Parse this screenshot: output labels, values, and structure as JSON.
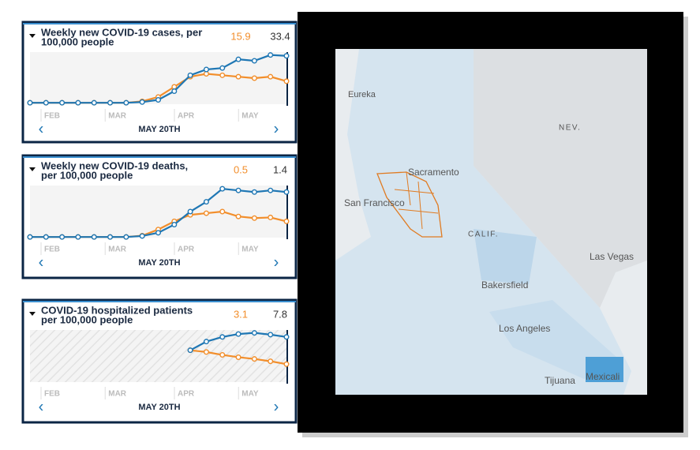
{
  "panels": [
    {
      "title": [
        "Weekly new COVID-19 cases, per",
        "100,000 people"
      ],
      "ylim": [
        0,
        36
      ],
      "months": [
        "FEB",
        "MAR",
        "APR",
        "MAY"
      ],
      "date": "MAY 20TH",
      "hatched": false,
      "series": [
        {
          "color": "#f28e2b",
          "current": 15.9,
          "values": [
            1,
            1,
            1,
            1,
            1,
            1,
            1,
            2,
            5,
            12,
            19,
            21,
            20,
            19,
            18,
            19,
            15.9
          ]
        },
        {
          "color": "#1f77b4",
          "current": 33.4,
          "values": [
            1,
            1,
            1,
            1,
            1,
            1,
            1,
            1.5,
            3,
            9,
            20,
            24,
            25,
            31,
            30,
            34,
            33.4
          ]
        }
      ]
    },
    {
      "title": [
        "Weekly new COVID-19 deaths,",
        "per 100,000 people"
      ],
      "ylim": [
        0,
        1.6
      ],
      "months": [
        "FEB",
        "MAR",
        "APR",
        "MAY"
      ],
      "date": "MAY 20TH",
      "hatched": false,
      "series": [
        {
          "color": "#f28e2b",
          "current": 0.5,
          "values": [
            0.02,
            0.02,
            0.02,
            0.02,
            0.02,
            0.02,
            0.02,
            0.06,
            0.25,
            0.5,
            0.7,
            0.75,
            0.8,
            0.65,
            0.6,
            0.62,
            0.5
          ]
        },
        {
          "color": "#1f77b4",
          "current": 1.4,
          "values": [
            0.02,
            0.02,
            0.02,
            0.02,
            0.02,
            0.02,
            0.02,
            0.05,
            0.15,
            0.4,
            0.8,
            1.1,
            1.5,
            1.45,
            1.4,
            1.45,
            1.4
          ]
        }
      ]
    },
    {
      "title": [
        "COVID-19 hospitalized patients",
        "per 100,000 people"
      ],
      "ylim": [
        0,
        9
      ],
      "months": [
        "FEB",
        "MAR",
        "APR",
        "MAY"
      ],
      "date": "MAY 20TH",
      "hatched": true,
      "series": [
        {
          "color": "#f28e2b",
          "current": 3.1,
          "values": [
            null,
            null,
            null,
            null,
            null,
            null,
            null,
            null,
            null,
            null,
            5.5,
            5.2,
            4.7,
            4.3,
            4,
            3.6,
            3.1
          ]
        },
        {
          "color": "#1f77b4",
          "current": 7.8,
          "values": [
            null,
            null,
            null,
            null,
            null,
            null,
            null,
            null,
            null,
            null,
            5.5,
            7,
            7.8,
            8.3,
            8.5,
            8.2,
            7.8
          ]
        }
      ]
    }
  ],
  "map": {
    "labels": [
      "Eureka",
      "Sacramento",
      "San Francisco",
      "CALIF.",
      "NEV.",
      "Las Vegas",
      "Bakersfield",
      "Los Angeles",
      "Tijuana",
      "Mexicali"
    ]
  }
}
